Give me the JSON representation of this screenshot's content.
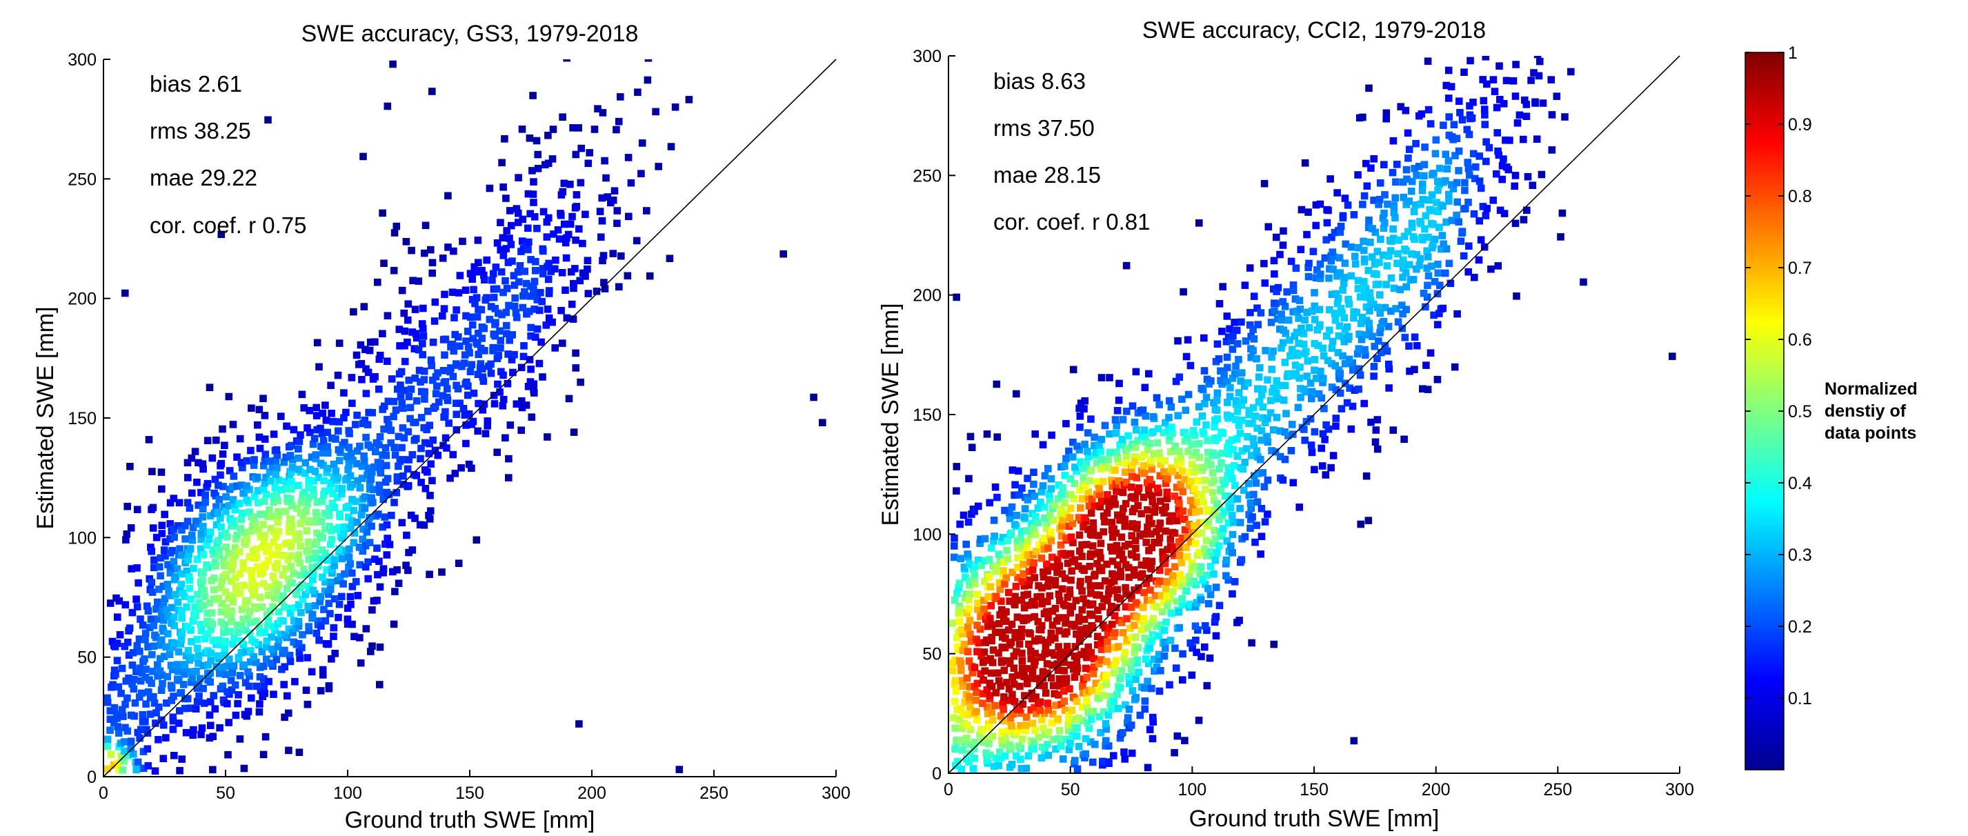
{
  "chart_data": [
    {
      "type": "scatter",
      "subtype": "density-colored scatter",
      "title": "SWE accuracy, GS3, 1979-2018",
      "xlabel": "Ground truth SWE [mm]",
      "ylabel": "Estimated SWE [mm]",
      "xlim": [
        0,
        300
      ],
      "ylim": [
        0,
        300
      ],
      "x_ticks": [
        "0",
        "50",
        "100",
        "150",
        "200",
        "250",
        "300"
      ],
      "y_ticks": [
        "0",
        "50",
        "100",
        "150",
        "200",
        "250",
        "300"
      ],
      "grid": false,
      "reference_line": {
        "x": [
          0,
          300
        ],
        "y": [
          0,
          300
        ]
      },
      "stats": [
        "bias 2.61",
        "rms 38.25",
        "mae 29.22",
        "cor. coef. r 0.75"
      ],
      "density_model": {
        "scale": 0.55,
        "cores": [
          {
            "x": 2,
            "y": 3,
            "sx": 6,
            "sy": 6,
            "w": 1.0
          },
          {
            "x": 55,
            "y": 78,
            "sx": 22,
            "sy": 26,
            "w": 0.65
          },
          {
            "x": 80,
            "y": 105,
            "sx": 20,
            "sy": 20,
            "w": 0.45
          }
        ],
        "band": {
          "slope": 1.05,
          "offset": 20,
          "width": 30,
          "x0": 0,
          "x1": 175
        },
        "max_points": 4200
      }
    },
    {
      "type": "scatter",
      "subtype": "density-colored scatter",
      "title": "SWE accuracy, CCI2, 1979-2018",
      "xlabel": "Ground truth SWE [mm]",
      "ylabel": "Estimated SWE [mm]",
      "xlim": [
        0,
        300
      ],
      "ylim": [
        0,
        300
      ],
      "x_ticks": [
        "0",
        "50",
        "100",
        "150",
        "200",
        "250",
        "300"
      ],
      "y_ticks": [
        "0",
        "50",
        "100",
        "150",
        "200",
        "250",
        "300"
      ],
      "grid": false,
      "reference_line": {
        "x": [
          0,
          300
        ],
        "y": [
          0,
          300
        ]
      },
      "stats": [
        "bias 8.63",
        "rms 37.50",
        "mae 28.15",
        "cor. coef. r 0.81"
      ],
      "density_model": {
        "scale": 1.0,
        "cores": [
          {
            "x": 35,
            "y": 52,
            "sx": 26,
            "sy": 28,
            "w": 1.0
          },
          {
            "x": 75,
            "y": 100,
            "sx": 22,
            "sy": 24,
            "w": 0.85
          }
        ],
        "band": {
          "slope": 1.08,
          "offset": 18,
          "width": 32,
          "x0": 0,
          "x1": 200
        },
        "max_points": 5200
      }
    }
  ],
  "colorbar": {
    "colormap": "jet",
    "range": [
      0,
      1
    ],
    "tick_labels": [
      "0.1",
      "0.2",
      "0.3",
      "0.4",
      "0.5",
      "0.6",
      "0.7",
      "0.8",
      "0.9",
      "1"
    ],
    "title_lines": [
      "Normalized",
      "denstiy of",
      "data points"
    ]
  }
}
